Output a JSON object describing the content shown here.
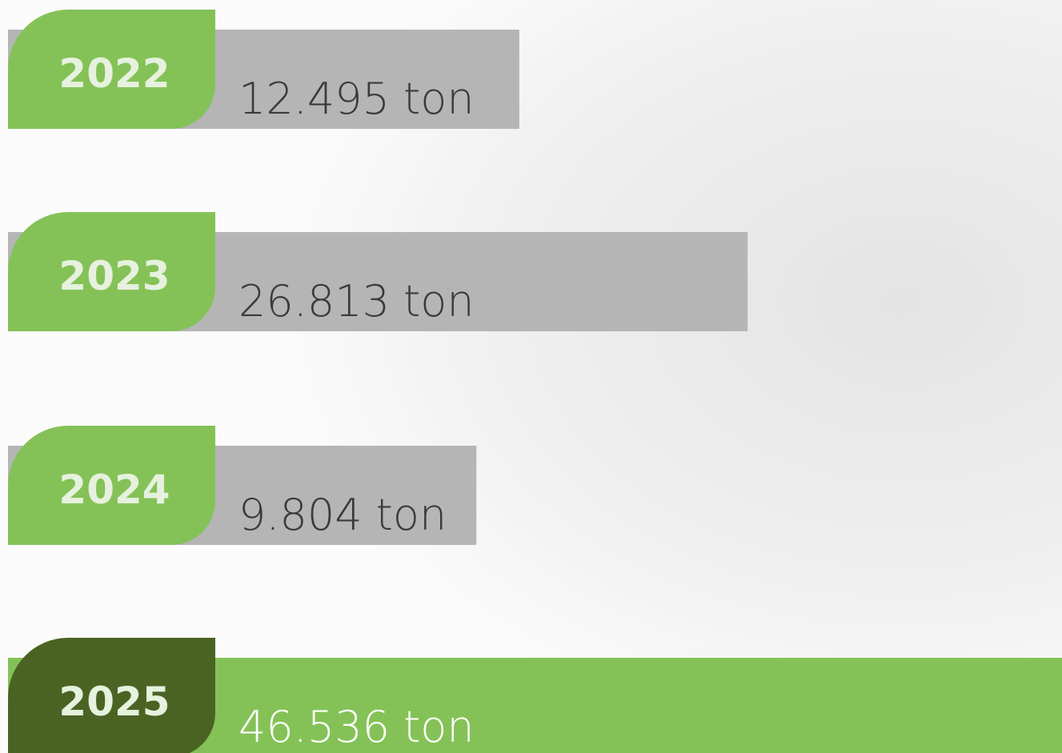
{
  "chart_data": {
    "type": "bar",
    "categories": [
      "2022",
      "2023",
      "2024",
      "2025"
    ],
    "values": [
      12495,
      26813,
      9804,
      46536
    ],
    "value_labels": [
      "12.495 ton",
      "26.813 ton",
      "9.804 ton",
      "46.536 ton"
    ],
    "colors": [
      "#b5b5b5",
      "#b5b5b5",
      "#b5b5b5",
      "#84c257"
    ],
    "badge_colors": [
      "#84c257",
      "#84c257",
      "#84c257",
      "#4a6323"
    ],
    "label_colors": [
      "#3a3a3a",
      "#3a3a3a",
      "#3a3a3a",
      "#ffffff"
    ]
  }
}
